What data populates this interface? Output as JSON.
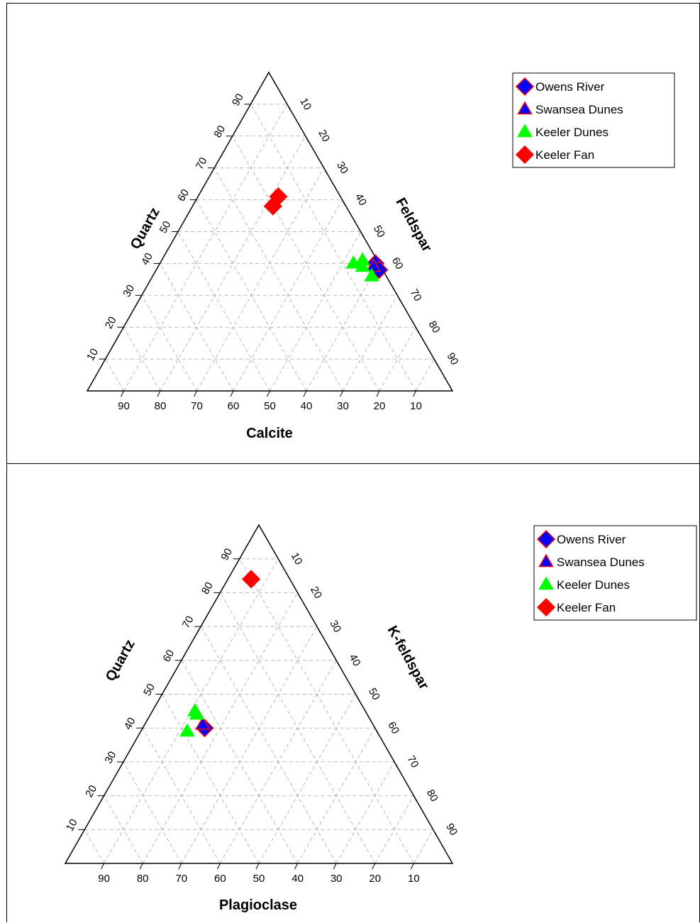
{
  "chart_data": [
    {
      "type": "scatter",
      "subtype": "ternary",
      "title": "",
      "axes": {
        "left": "Quartz",
        "right": "Feldspar",
        "bottom": "Calcite"
      },
      "ticks": [
        10,
        20,
        30,
        40,
        50,
        60,
        70,
        80,
        90
      ],
      "grid": "dashed",
      "legend_position": "top-right",
      "series": [
        {
          "name": "Owens River",
          "marker": "diamond",
          "color": "#0000ff",
          "edge": "#ff0000",
          "points": [
            {
              "quartz": 40,
              "feldspar": 59,
              "calcite": 1
            },
            {
              "quartz": 38,
              "feldspar": 61,
              "calcite": 1
            }
          ]
        },
        {
          "name": "Swansea Dunes",
          "marker": "triangle",
          "color": "#0000ff",
          "edge": "#ff0000",
          "points": [
            {
              "quartz": 39,
              "feldspar": 59,
              "calcite": 2
            }
          ]
        },
        {
          "name": "Keeler Dunes",
          "marker": "triangle",
          "color": "#00ff00",
          "edge": "#00ff00",
          "points": [
            {
              "quartz": 40,
              "feldspar": 53,
              "calcite": 7
            },
            {
              "quartz": 41,
              "feldspar": 55,
              "calcite": 4
            },
            {
              "quartz": 39,
              "feldspar": 56,
              "calcite": 5
            },
            {
              "quartz": 36,
              "feldspar": 60,
              "calcite": 4
            }
          ]
        },
        {
          "name": "Keeler Fan",
          "marker": "diamond",
          "color": "#ff0000",
          "edge": "#ff0000",
          "points": [
            {
              "quartz": 58,
              "feldspar": 22,
              "calcite": 20
            },
            {
              "quartz": 61,
              "feldspar": 22,
              "calcite": 17
            }
          ]
        }
      ]
    },
    {
      "type": "scatter",
      "subtype": "ternary",
      "title": "",
      "axes": {
        "left": "Quartz",
        "right": "K-feldspar",
        "bottom": "Plagioclase"
      },
      "ticks": [
        10,
        20,
        30,
        40,
        50,
        60,
        70,
        80,
        90
      ],
      "grid": "dashed",
      "legend_position": "top-right",
      "series": [
        {
          "name": "Owens River",
          "marker": "diamond",
          "color": "#0000ff",
          "edge": "#ff0000",
          "points": [
            {
              "quartz": 40,
              "k_feldspar": 16,
              "plagioclase": 44
            }
          ]
        },
        {
          "name": "Swansea Dunes",
          "marker": "triangle",
          "color": "#0000ff",
          "edge": "#ff0000",
          "points": [
            {
              "quartz": 41,
              "k_feldspar": 15,
              "plagioclase": 44
            }
          ]
        },
        {
          "name": "Keeler Dunes",
          "marker": "triangle",
          "color": "#00ff00",
          "edge": "#00ff00",
          "points": [
            {
              "quartz": 44,
              "k_feldspar": 12,
              "plagioclase": 44
            },
            {
              "quartz": 45,
              "k_feldspar": 11,
              "plagioclase": 44
            },
            {
              "quartz": 39,
              "k_feldspar": 12,
              "plagioclase": 49
            }
          ]
        },
        {
          "name": "Keeler Fan",
          "marker": "diamond",
          "color": "#ff0000",
          "edge": "#ff0000",
          "points": [
            {
              "quartz": 84,
              "k_feldspar": 6,
              "plagioclase": 10
            }
          ]
        }
      ]
    }
  ]
}
